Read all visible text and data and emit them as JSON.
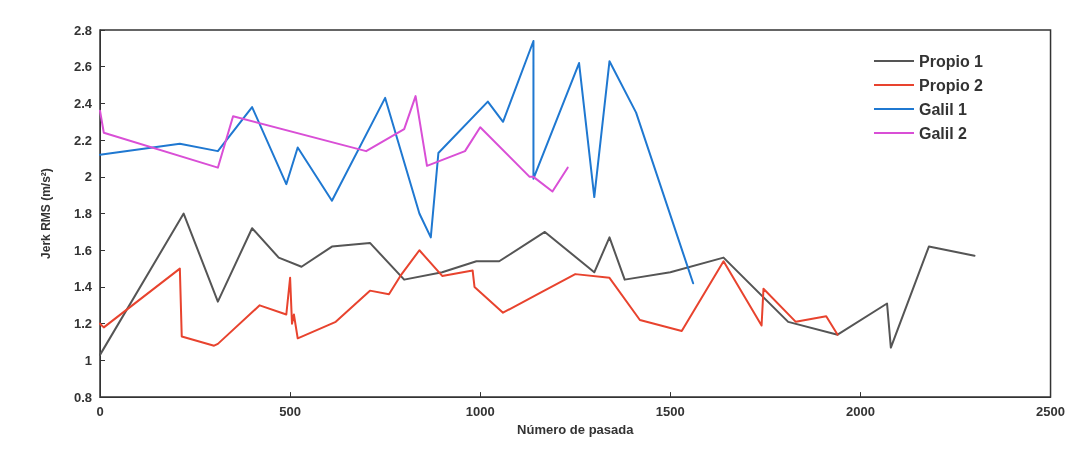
{
  "chart_data": {
    "type": "line",
    "xlabel": "Número de pasada",
    "ylabel": "Jerk RMS (m/s²)",
    "xlim": [
      0,
      2500
    ],
    "xticks": [
      0,
      500,
      1000,
      1500,
      2000,
      2500
    ],
    "ylim": [
      0.8,
      2.8
    ],
    "yticks": [
      0.8,
      1,
      1.2,
      1.4,
      1.6,
      1.8,
      2,
      2.2,
      2.4,
      2.6,
      2.8
    ],
    "grid": false,
    "legend": "top right",
    "marker": "none",
    "line_style": "solid",
    "series": [
      {
        "name": "Propio 1",
        "color": "#555555",
        "x": [
          0,
          220,
          310,
          400,
          470,
          530,
          610,
          710,
          800,
          900,
          990,
          1050,
          1170,
          1300,
          1340,
          1380,
          1500,
          1640,
          1810,
          1940,
          2070,
          2080,
          2180,
          2300
        ],
        "values": [
          1.03,
          1.8,
          1.32,
          1.72,
          1.56,
          1.51,
          1.62,
          1.64,
          1.44,
          1.48,
          1.54,
          1.54,
          1.7,
          1.48,
          1.67,
          1.44,
          1.48,
          1.56,
          1.21,
          1.14,
          1.31,
          1.07,
          1.62,
          1.57
        ]
      },
      {
        "name": "Propio 2",
        "color": "#e8432e",
        "x": [
          0,
          10,
          210,
          215,
          300,
          310,
          420,
          490,
          500,
          505,
          510,
          520,
          620,
          710,
          760,
          790,
          840,
          900,
          980,
          985,
          1060,
          1160,
          1250,
          1340,
          1420,
          1530,
          1640,
          1740,
          1745,
          1830,
          1910,
          1940
        ],
        "values": [
          1.2,
          1.18,
          1.5,
          1.13,
          1.08,
          1.09,
          1.3,
          1.25,
          1.45,
          1.2,
          1.25,
          1.12,
          1.21,
          1.38,
          1.36,
          1.46,
          1.6,
          1.46,
          1.49,
          1.4,
          1.26,
          1.37,
          1.47,
          1.45,
          1.22,
          1.16,
          1.54,
          1.19,
          1.39,
          1.21,
          1.24,
          1.14
        ]
      },
      {
        "name": "Galil 1",
        "color": "#1f78d1",
        "x": [
          0,
          210,
          310,
          400,
          490,
          520,
          610,
          750,
          840,
          870,
          890,
          1020,
          1060,
          1140,
          1140,
          1260,
          1300,
          1340,
          1410,
          1560
        ],
        "values": [
          2.12,
          2.18,
          2.14,
          2.38,
          1.96,
          2.16,
          1.87,
          2.43,
          1.8,
          1.67,
          2.13,
          2.41,
          2.3,
          2.74,
          1.99,
          2.62,
          1.89,
          2.63,
          2.35,
          1.42
        ]
      },
      {
        "name": "Galil 2",
        "color": "#d94fd6",
        "x": [
          0,
          10,
          310,
          350,
          700,
          800,
          830,
          860,
          960,
          1000,
          1130,
          1140,
          1190,
          1230
        ],
        "values": [
          2.36,
          2.24,
          2.05,
          2.33,
          2.14,
          2.26,
          2.44,
          2.06,
          2.14,
          2.27,
          2.0,
          2.0,
          1.92,
          2.05
        ]
      }
    ]
  }
}
